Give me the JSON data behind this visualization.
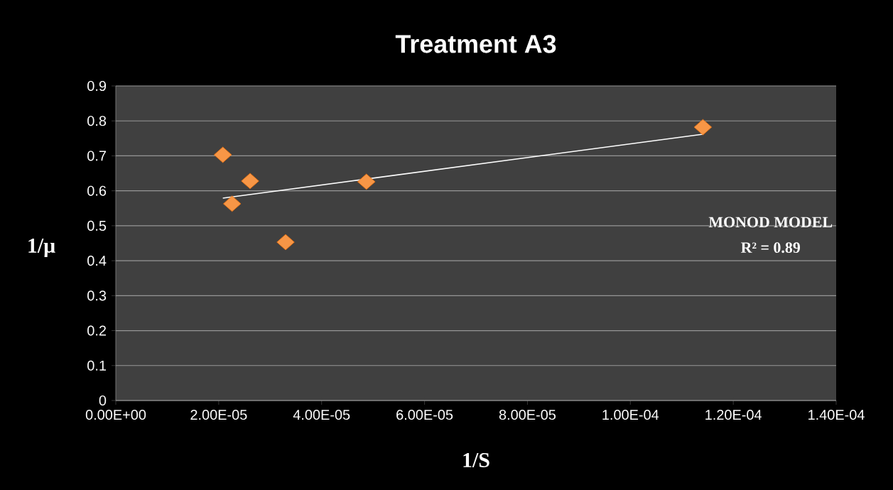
{
  "chart_data": {
    "type": "scatter",
    "title": "Treatment  A3",
    "xlabel": "1/S",
    "ylabel": "1/μ",
    "xlim": [
      0,
      0.00014
    ],
    "ylim": [
      0,
      0.9
    ],
    "xticks": [
      {
        "value": 0,
        "label": "0.00E+00"
      },
      {
        "value": 2e-05,
        "label": "2.00E-05"
      },
      {
        "value": 4e-05,
        "label": "4.00E-05"
      },
      {
        "value": 6e-05,
        "label": "6.00E-05"
      },
      {
        "value": 8e-05,
        "label": "8.00E-05"
      },
      {
        "value": 0.0001,
        "label": "1.00E-04"
      },
      {
        "value": 0.00012,
        "label": "1.20E-04"
      },
      {
        "value": 0.00014,
        "label": "1.40E-04"
      }
    ],
    "yticks": [
      0,
      0.1,
      0.2,
      0.3,
      0.4,
      0.5,
      0.6,
      0.7,
      0.8,
      0.9
    ],
    "grid": "y",
    "series": [
      {
        "marker": "diamond",
        "color": "#f79646",
        "x": [
          2.08e-05,
          2.26e-05,
          2.61e-05,
          3.3e-05,
          4.87e-05,
          0.0001141
        ],
        "values": [
          0.703,
          0.563,
          0.628,
          0.453,
          0.626,
          0.782
        ]
      },
      {
        "type": "line",
        "marker": "none",
        "color": "#ffffff",
        "x": [
          2.08e-05,
          0.0001141
        ],
        "values": [
          0.579,
          0.762
        ]
      }
    ],
    "annotations": [
      "MONOD MODEL",
      "R² = 0.89"
    ]
  }
}
